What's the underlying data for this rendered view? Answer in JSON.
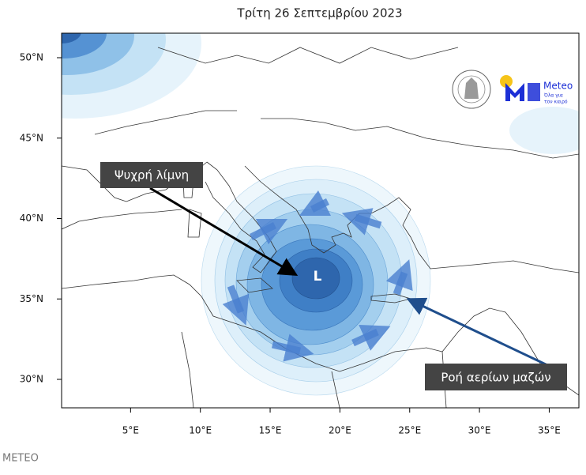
{
  "header": {
    "title": "Τρίτη 26 Σεπτεμβρίου 2023"
  },
  "map": {
    "lat_ticks": [
      {
        "value": 50,
        "label": "50°N"
      },
      {
        "value": 45,
        "label": "45°N"
      },
      {
        "value": 40,
        "label": "40°N"
      },
      {
        "value": 35,
        "label": "35°N"
      },
      {
        "value": 30,
        "label": "30°N"
      }
    ],
    "lon_ticks": [
      {
        "value": 5,
        "label": "5°E"
      },
      {
        "value": 10,
        "label": "10°E"
      },
      {
        "value": 15,
        "label": "15°E"
      },
      {
        "value": 20,
        "label": "20°E"
      },
      {
        "value": 25,
        "label": "25°E"
      },
      {
        "value": 30,
        "label": "30°E"
      },
      {
        "value": 35,
        "label": "35°E"
      }
    ],
    "center_label": "L",
    "annotations": [
      "Ψυχρή λίμνη",
      "Ροή αερίων μαζών"
    ]
  },
  "logo": {
    "name": "Meteo",
    "tagline": [
      "Όλα για",
      "τον καιρό"
    ]
  },
  "footer": "METEO"
}
